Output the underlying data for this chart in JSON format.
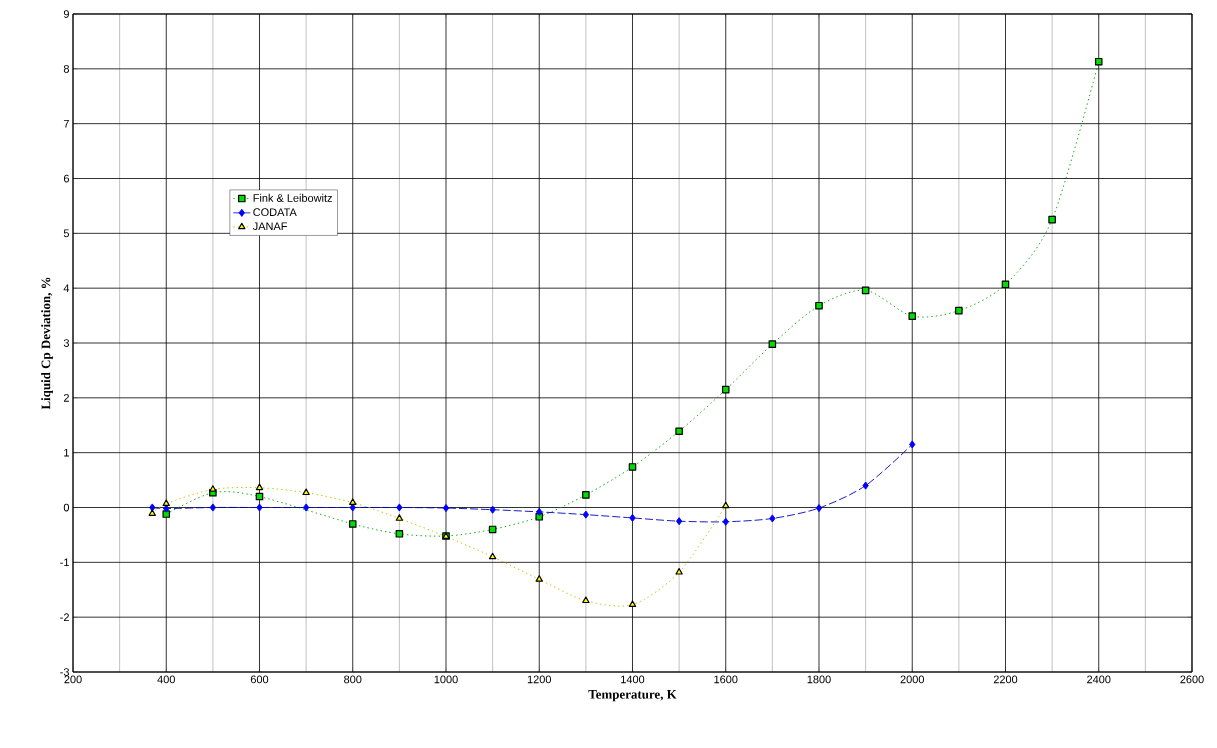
{
  "chart_data": {
    "type": "line",
    "xlabel": "Temperature, K",
    "ylabel": "Liquid Cp Deviation, %",
    "xlim": [
      200,
      2600
    ],
    "xticks": [
      200,
      400,
      600,
      800,
      1000,
      1200,
      1400,
      1600,
      1800,
      2000,
      2200,
      2400,
      2600
    ],
    "ylim": [
      -3,
      9
    ],
    "yticks": [
      -3,
      -2,
      -1,
      0,
      1,
      2,
      3,
      4,
      5,
      6,
      7,
      8,
      9
    ],
    "grid": true,
    "legend": "left",
    "series": [
      {
        "name": "Fink & Leibowitz",
        "color": "#00dd00",
        "marker": "square",
        "line_style": "dotted",
        "x": [
          400,
          500,
          600,
          700,
          800,
          900,
          1000,
          1100,
          1200,
          1300,
          1400,
          1500,
          1600,
          1700,
          1800,
          1900,
          2000,
          2100,
          2200,
          2300,
          2400
        ],
        "values": [
          -0.12,
          0.27,
          0.2,
          null,
          -0.3,
          -0.48,
          -0.52,
          -0.4,
          -0.17,
          0.23,
          0.74,
          1.39,
          2.15,
          2.98,
          3.68,
          3.96,
          3.49,
          3.59,
          4.07,
          5.25,
          8.13
        ]
      },
      {
        "name": "CODATA",
        "color": "#0000ff",
        "marker": "diamond",
        "line_style": "dashed",
        "x": [
          370,
          400,
          500,
          600,
          700,
          800,
          900,
          1000,
          1100,
          1200,
          1300,
          1400,
          1500,
          1600,
          1700,
          1800,
          1900,
          2000
        ],
        "values": [
          0,
          -0.02,
          0,
          0,
          0,
          0,
          0,
          -0.01,
          -0.04,
          -0.08,
          -0.13,
          -0.19,
          -0.25,
          -0.26,
          -0.2,
          -0.01,
          0.4,
          1.15
        ]
      },
      {
        "name": "JANAF",
        "color": "#ffff00",
        "marker": "triangle",
        "line_style": "dotted",
        "x": [
          370,
          400,
          500,
          600,
          700,
          800,
          900,
          1000,
          1100,
          1200,
          1300,
          1400,
          1500,
          1600
        ],
        "values": [
          -0.11,
          0.07,
          0.33,
          0.36,
          0.27,
          0.09,
          -0.2,
          -0.53,
          -0.9,
          -1.31,
          -1.7,
          -1.77,
          -1.18,
          0.03
        ]
      }
    ]
  }
}
